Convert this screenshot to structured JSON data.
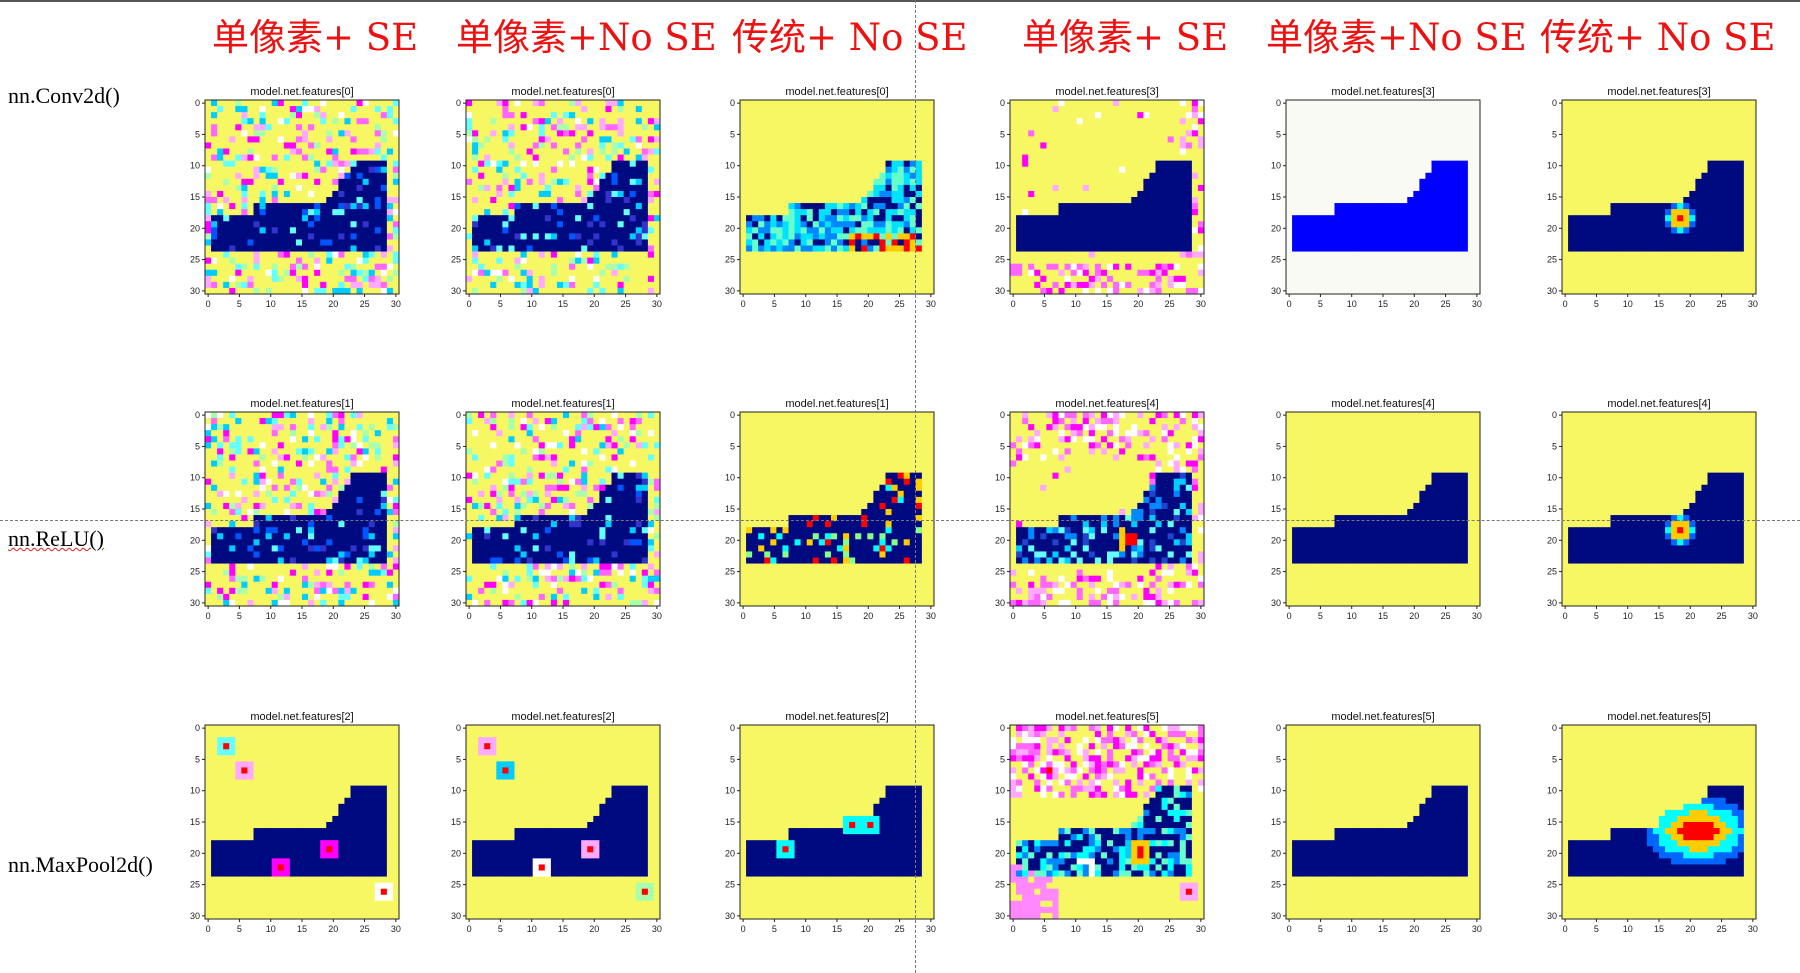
{
  "column_titles": [
    "单像素+ SE",
    "单像素+No SE",
    "传统+ No SE",
    "单像素+ SE",
    "单像素+No SE",
    "传统+ No SE"
  ],
  "row_labels": [
    "nn.Conv2d()",
    "nn.ReLU()",
    "nn.MaxPool2d()"
  ],
  "chart_data": {
    "type": "heatmap",
    "grid": "3x6",
    "x_ticks": [
      "0",
      "5",
      "10",
      "15",
      "20",
      "25",
      "30"
    ],
    "y_ticks": [
      "0",
      "5",
      "10",
      "15",
      "20",
      "25",
      "30"
    ],
    "xlim": [
      0,
      31
    ],
    "ylim": [
      31,
      0
    ],
    "panels": [
      {
        "title": "model.net.features[0]",
        "row": 0,
        "col": 0,
        "variant": "noisy"
      },
      {
        "title": "model.net.features[0]",
        "row": 0,
        "col": 1,
        "variant": "noisy"
      },
      {
        "title": "model.net.features[0]",
        "row": 0,
        "col": 2,
        "variant": "conv-traditional"
      },
      {
        "title": "model.net.features[3]",
        "row": 0,
        "col": 3,
        "variant": "edge-noise"
      },
      {
        "title": "model.net.features[3]",
        "row": 0,
        "col": 4,
        "variant": "blue-on-white"
      },
      {
        "title": "model.net.features[3]",
        "row": 0,
        "col": 5,
        "variant": "hotspot"
      },
      {
        "title": "model.net.features[1]",
        "row": 1,
        "col": 0,
        "variant": "noisy"
      },
      {
        "title": "model.net.features[1]",
        "row": 1,
        "col": 1,
        "variant": "noisy"
      },
      {
        "title": "model.net.features[1]",
        "row": 1,
        "col": 2,
        "variant": "relu-traditional"
      },
      {
        "title": "model.net.features[4]",
        "row": 1,
        "col": 3,
        "variant": "blurry-noise"
      },
      {
        "title": "model.net.features[4]",
        "row": 1,
        "col": 4,
        "variant": "clean"
      },
      {
        "title": "model.net.features[4]",
        "row": 1,
        "col": 5,
        "variant": "hotspot"
      },
      {
        "title": "model.net.features[2]",
        "row": 2,
        "col": 0,
        "variant": "pool-sparse"
      },
      {
        "title": "model.net.features[2]",
        "row": 2,
        "col": 1,
        "variant": "pool-sparse"
      },
      {
        "title": "model.net.features[2]",
        "row": 2,
        "col": 2,
        "variant": "pool-traditional"
      },
      {
        "title": "model.net.features[5]",
        "row": 2,
        "col": 3,
        "variant": "pool-blur"
      },
      {
        "title": "model.net.features[5]",
        "row": 2,
        "col": 4,
        "variant": "clean"
      },
      {
        "title": "model.net.features[5]",
        "row": 2,
        "col": 5,
        "variant": "hotspot-wide"
      }
    ],
    "colors": {
      "background": "#f7f763",
      "shoe": "#000a80",
      "white_background": "#fafaf5",
      "bright_blue": "#0000ff",
      "noise": [
        "#ff66ff",
        "#ff00ff",
        "#ffffff",
        "#66ffff",
        "#00ccff",
        "#ffaaff",
        "#aaffaa"
      ],
      "hot": [
        "#ff0000",
        "#ffcc00",
        "#00ffff",
        "#0066ff"
      ]
    }
  }
}
